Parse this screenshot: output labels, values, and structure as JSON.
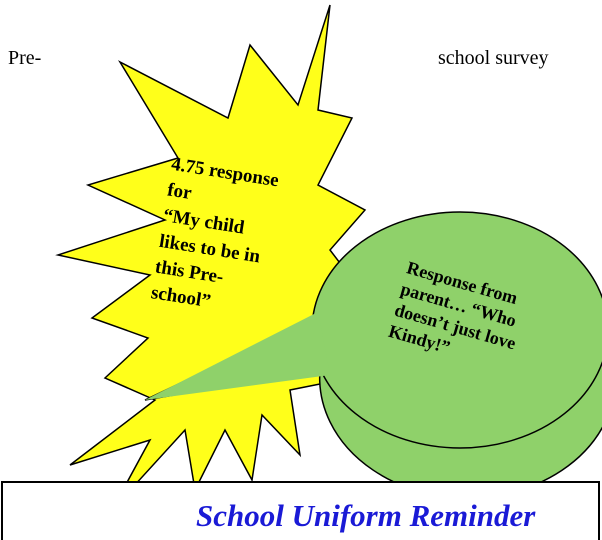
{
  "header": {
    "left": "Pre-",
    "right": "school survey"
  },
  "starburst": {
    "lines": [
      "4.75 response",
      "for",
      "“My child",
      "likes to be in",
      "this Pre-",
      "school”"
    ]
  },
  "speech_bubble": {
    "lines": [
      "Response from",
      "parent… “Who",
      "doesn’t just love",
      "Kindy!”"
    ]
  },
  "notice": {
    "title": "School Uniform Reminder"
  }
}
